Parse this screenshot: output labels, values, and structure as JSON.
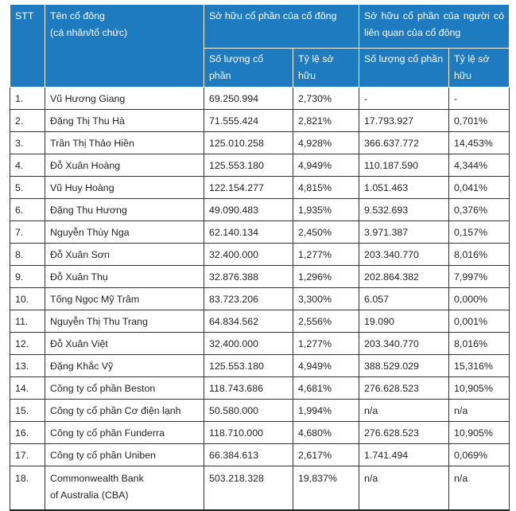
{
  "headers": {
    "stt": "STT",
    "name_line1": "Tên cổ đông",
    "name_line2": "(cá nhân/tổ chức)",
    "group_own": "Sở hữu cổ phần của cổ đông",
    "group_related": "Sở hữu cổ phần của người có liên quan của cổ đông",
    "own_qty": "Số lượng cổ phần",
    "own_pct": "Tỷ lệ sở hữu",
    "rel_qty": "Số lượng cổ phần",
    "rel_pct": "Tỷ lệ sở hữu"
  },
  "rows": [
    {
      "stt": "1.",
      "name": "Vũ Hương Giang",
      "own_qty": "69.250.994",
      "own_pct": "2,730%",
      "rel_qty": "-",
      "rel_pct": "-"
    },
    {
      "stt": "2.",
      "name": "Đặng Thị Thu Hà",
      "own_qty": "71.555.424",
      "own_pct": "2,821%",
      "rel_qty": "17.793.927",
      "rel_pct": "0,701%"
    },
    {
      "stt": "3.",
      "name": "Trần Thị Thảo Hiền",
      "own_qty": "125.010.258",
      "own_pct": "4,928%",
      "rel_qty": "366.637.772",
      "rel_pct": "14,453%"
    },
    {
      "stt": "4.",
      "name": "Đỗ Xuân Hoàng",
      "own_qty": "125.553.180",
      "own_pct": "4,949%",
      "rel_qty": "110.187.590",
      "rel_pct": "4,344%"
    },
    {
      "stt": "5.",
      "name": "Vũ Huy Hoàng",
      "own_qty": "122.154.277",
      "own_pct": "4,815%",
      "rel_qty": "1.051.463",
      "rel_pct": "0,041%"
    },
    {
      "stt": "6.",
      "name": "Đặng Thu Hương",
      "own_qty": "49.090.483",
      "own_pct": "1,935%",
      "rel_qty": "9.532.693",
      "rel_pct": "0,376%"
    },
    {
      "stt": "7.",
      "name": "Nguyễn Thùy Nga",
      "own_qty": "62.140.134",
      "own_pct": "2,450%",
      "rel_qty": "3.971.387",
      "rel_pct": "0,157%"
    },
    {
      "stt": "8.",
      "name": "Đỗ Xuân Sơn",
      "own_qty": "32.400.000",
      "own_pct": "1,277%",
      "rel_qty": "203.340.770",
      "rel_pct": "8,016%"
    },
    {
      "stt": "9.",
      "name": "Đỗ Xuân Thụ",
      "own_qty": "32.876.388",
      "own_pct": "1,296%",
      "rel_qty": "202.864.382",
      "rel_pct": "7,997%"
    },
    {
      "stt": "10.",
      "name": "Tống Ngọc Mỹ Trâm",
      "own_qty": "83.723.206",
      "own_pct": "3,300%",
      "rel_qty": "6.057",
      "rel_pct": "0,000%"
    },
    {
      "stt": "11.",
      "name": "Nguyễn Thị Thu Trang",
      "own_qty": "64.834.562",
      "own_pct": "2,556%",
      "rel_qty": "19.090",
      "rel_pct": "0,001%"
    },
    {
      "stt": "12.",
      "name": "Đỗ Xuân Việt",
      "own_qty": "32.400.000",
      "own_pct": "1,277%",
      "rel_qty": "203.340.770",
      "rel_pct": "8,016%"
    },
    {
      "stt": "13.",
      "name": "Đặng Khắc Vỹ",
      "own_qty": "125.553.180",
      "own_pct": "4,949%",
      "rel_qty": "388.529.029",
      "rel_pct": "15,316%"
    },
    {
      "stt": "14.",
      "name": "Công ty cổ phần Beston",
      "own_qty": "118.743.686",
      "own_pct": "4,681%",
      "rel_qty": "276.628.523",
      "rel_pct": "10,905%"
    },
    {
      "stt": "15.",
      "name": "Công ty cổ phần Cơ điện lạnh",
      "own_qty": "50.580.000",
      "own_pct": "1,994%",
      "rel_qty": "n/a",
      "rel_pct": "n/a"
    },
    {
      "stt": "16.",
      "name": "Công ty cổ phần Funderra",
      "own_qty": "118.710.000",
      "own_pct": "4,680%",
      "rel_qty": "276.628.523",
      "rel_pct": "10,905%"
    },
    {
      "stt": "17.",
      "name": "Công ty cổ phần Uniben",
      "own_qty": "66.384.613",
      "own_pct": "2,617%",
      "rel_qty": "1.741.494",
      "rel_pct": "0,069%"
    },
    {
      "stt": "18.",
      "name_line1": "Commonwealth Bank",
      "name_line2": "of Australia (CBA)",
      "own_qty": "503.218.328",
      "own_pct": "19,837%",
      "rel_qty": "n/a",
      "rel_pct": "n/a"
    }
  ]
}
